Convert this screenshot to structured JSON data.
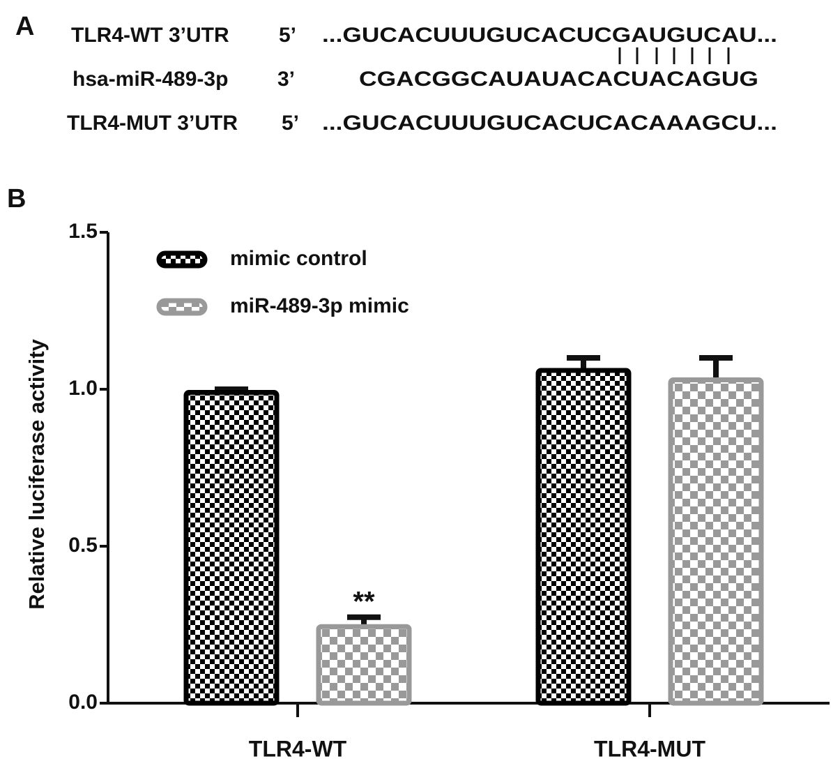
{
  "panel_a": {
    "label": "A",
    "rows": [
      {
        "name": "TLR4-WT 3’UTR",
        "end": "5’",
        "sequence": "...GUCACUUUGUCACUCGAUGUCAU..."
      },
      {
        "name": "hsa-miR-489-3p",
        "end": "3’",
        "sequence": "CGACGGCAUAUACACUACAGUG"
      },
      {
        "name": "TLR4-MUT 3’UTR",
        "end": "5’",
        "sequence": "...GUCACUUUGUCACUCACAAAGCU..."
      }
    ]
  },
  "panel_b": {
    "label": "B"
  },
  "chart_data": {
    "type": "bar",
    "ylabel": "Relative luciferase activity",
    "categories": [
      "TLR4-WT",
      "TLR4-MUT"
    ],
    "series": [
      {
        "name": "mimic control",
        "color": "#000000",
        "values": [
          0.99,
          1.06
        ],
        "errors": [
          0.01,
          0.04
        ]
      },
      {
        "name": "miR-489-3p mimic",
        "color": "#999999",
        "values": [
          0.244,
          1.03
        ],
        "errors": [
          0.03,
          0.07
        ]
      }
    ],
    "annotations": [
      "**"
    ],
    "ylim": [
      0,
      1.5
    ],
    "yticks": [
      {
        "value": 0,
        "label": "0.0"
      },
      0.5,
      {
        "value": 1,
        "label": "1.0"
      },
      1.5
    ],
    "legend": "upper left"
  }
}
